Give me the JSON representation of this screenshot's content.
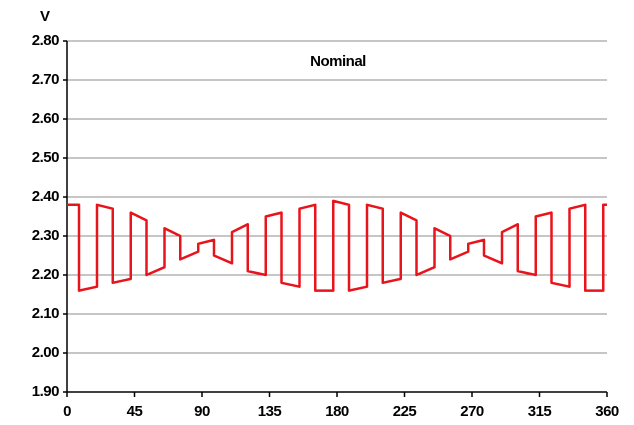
{
  "chart_data": {
    "type": "line",
    "y_label": "V",
    "annotation": "Nominal",
    "x": [
      0,
      8,
      8,
      20,
      20,
      30.5,
      30.5,
      42.5,
      42.5,
      53,
      53,
      65,
      65,
      75.5,
      75.5,
      87.5,
      87.5,
      98,
      98,
      110,
      110,
      120.5,
      120.5,
      132.5,
      132.5,
      143,
      143,
      155,
      155,
      165.5,
      165.5,
      177.5,
      177.5,
      188,
      188,
      200,
      200,
      210.5,
      210.5,
      222.5,
      222.5,
      233,
      233,
      245,
      245,
      255.5,
      255.5,
      267.5,
      267.5,
      278,
      278,
      290,
      290,
      300.5,
      300.5,
      312.5,
      312.5,
      323,
      323,
      335,
      335,
      345.5,
      345.5,
      357.5,
      357.5,
      360
    ],
    "values": [
      2.38,
      2.38,
      2.16,
      2.17,
      2.38,
      2.37,
      2.18,
      2.19,
      2.36,
      2.34,
      2.2,
      2.22,
      2.32,
      2.3,
      2.24,
      2.26,
      2.28,
      2.29,
      2.25,
      2.23,
      2.31,
      2.33,
      2.21,
      2.2,
      2.35,
      2.36,
      2.18,
      2.17,
      2.37,
      2.38,
      2.16,
      2.16,
      2.39,
      2.38,
      2.16,
      2.17,
      2.38,
      2.37,
      2.18,
      2.19,
      2.36,
      2.34,
      2.2,
      2.22,
      2.32,
      2.3,
      2.24,
      2.26,
      2.28,
      2.29,
      2.25,
      2.23,
      2.31,
      2.33,
      2.21,
      2.2,
      2.35,
      2.36,
      2.18,
      2.17,
      2.37,
      2.38,
      2.16,
      2.16,
      2.38,
      2.38
    ],
    "color": "#e8141b",
    "xlim": [
      0,
      360
    ],
    "xticks": [
      0,
      45,
      90,
      135,
      180,
      225,
      270,
      315,
      360
    ],
    "ylim": [
      1.9,
      2.8
    ],
    "yticks": [
      {
        "value": 1.9,
        "label": "1.90"
      },
      {
        "value": 2.0,
        "label": "2.00"
      },
      {
        "value": 2.1,
        "label": "2.10"
      },
      {
        "value": 2.2,
        "label": "2.20"
      },
      {
        "value": 2.3,
        "label": "2.30"
      },
      {
        "value": 2.4,
        "label": "2.40"
      },
      {
        "value": 2.5,
        "label": "2.50"
      },
      {
        "value": 2.6,
        "label": "2.60"
      },
      {
        "value": 2.7,
        "label": "2.70"
      },
      {
        "value": 2.8,
        "label": "2.80"
      }
    ],
    "grid": true
  }
}
